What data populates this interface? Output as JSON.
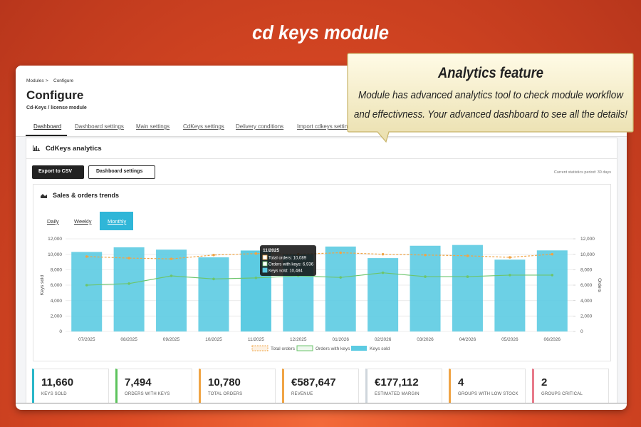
{
  "header": {
    "title": "cd keys module"
  },
  "callout": {
    "title": "Analytics feature",
    "lines": [
      "Module has advanced analytics tool to check module workflow",
      "and effectivness. Your advanced dashboard to see all the details!"
    ]
  },
  "breadcrumb": {
    "items": [
      "Modules",
      "Configure"
    ],
    "separator": ">"
  },
  "page": {
    "title": "Configure",
    "subtitle": "Cd-Keys / license module"
  },
  "tabs": {
    "items": [
      "Dashboard",
      "Dashboard settings",
      "Main settings",
      "CdKeys settings",
      "Delivery conditions",
      "Import cdkeys settings"
    ],
    "active": 0
  },
  "panel": {
    "title": "CdKeys analytics",
    "buttons": [
      "Export to CSV",
      "Dashboard settings"
    ],
    "period": "Current statistics period: 30 days"
  },
  "trends": {
    "title": "Sales & orders trends",
    "periods": [
      "Daily",
      "Weekly",
      "Monthly"
    ],
    "active": 2
  },
  "chart_data": {
    "type": "bar",
    "categories": [
      "07/2025",
      "08/2025",
      "09/2025",
      "10/2025",
      "11/2025",
      "12/2025",
      "01/2026",
      "02/2026",
      "03/2026",
      "04/2026",
      "05/2026",
      "06/2026"
    ],
    "series": [
      {
        "name": "Total orders",
        "type": "line",
        "dashed": true,
        "color": "#f0a445",
        "axis": "y2",
        "values": [
          9700,
          9500,
          9400,
          9900,
          10089,
          10000,
          10200,
          10000,
          9900,
          9800,
          9600,
          10000
        ]
      },
      {
        "name": "Orders with keys",
        "type": "line",
        "dashed": false,
        "color": "#6cc56c",
        "axis": "y2",
        "values": [
          6000,
          6200,
          7200,
          6800,
          6936,
          7200,
          7000,
          7600,
          7100,
          7100,
          7300,
          7300
        ]
      },
      {
        "name": "Keys sold",
        "type": "bar",
        "color": "#5ccbe2",
        "values": [
          10300,
          10900,
          10600,
          9600,
          10484,
          10000,
          11000,
          9500,
          11100,
          11200,
          9300,
          10500
        ]
      }
    ],
    "ylabel": "Keys sold",
    "y2label": "Orders",
    "ylim": [
      0,
      12000
    ],
    "yticks": [
      0,
      {
        "value": 2000,
        "label": "2,000"
      },
      {
        "value": 4000,
        "label": "4,000"
      },
      {
        "value": 6000,
        "label": "6,000"
      },
      {
        "value": 8000,
        "label": "8,000"
      },
      {
        "value": 10000,
        "label": "10,000"
      },
      {
        "value": 12000,
        "label": "12,000"
      }
    ],
    "y2lim": [
      0,
      12000
    ],
    "y2ticks": [
      0,
      {
        "value": 2000,
        "label": "2,000"
      },
      {
        "value": 4000,
        "label": "4,000"
      },
      {
        "value": 6000,
        "label": "6,000"
      },
      {
        "value": 8000,
        "label": "8,000"
      },
      {
        "value": 10000,
        "label": "10,000"
      },
      {
        "value": 12000,
        "label": "12,000"
      }
    ],
    "grid": true,
    "legend": "bottom",
    "tooltip": {
      "index": 4,
      "title": "11/2025",
      "lines": [
        "Total orders: 10,089",
        "Orders with keys: 6,936",
        "Keys sold: 10,484"
      ]
    }
  },
  "stats": [
    {
      "value": "11,660",
      "label": "KEYS SOLD",
      "color": "#2ab7c9"
    },
    {
      "value": "7,494",
      "label": "ORDERS WITH KEYS",
      "color": "#5cc35c"
    },
    {
      "value": "10,780",
      "label": "TOTAL ORDERS",
      "color": "#f0a445"
    },
    {
      "value": "€587,647",
      "label": "REVENUE",
      "color": "#f0a445"
    },
    {
      "value": "€177,112",
      "label": "ESTIMATED MARGIN",
      "color": "#cfd6dc"
    },
    {
      "value": "4",
      "label": "GROUPS WITH LOW STOCK",
      "color": "#f0a445"
    },
    {
      "value": "2",
      "label": "GROUPS CRITICAL",
      "color": "#e87a8a"
    }
  ]
}
